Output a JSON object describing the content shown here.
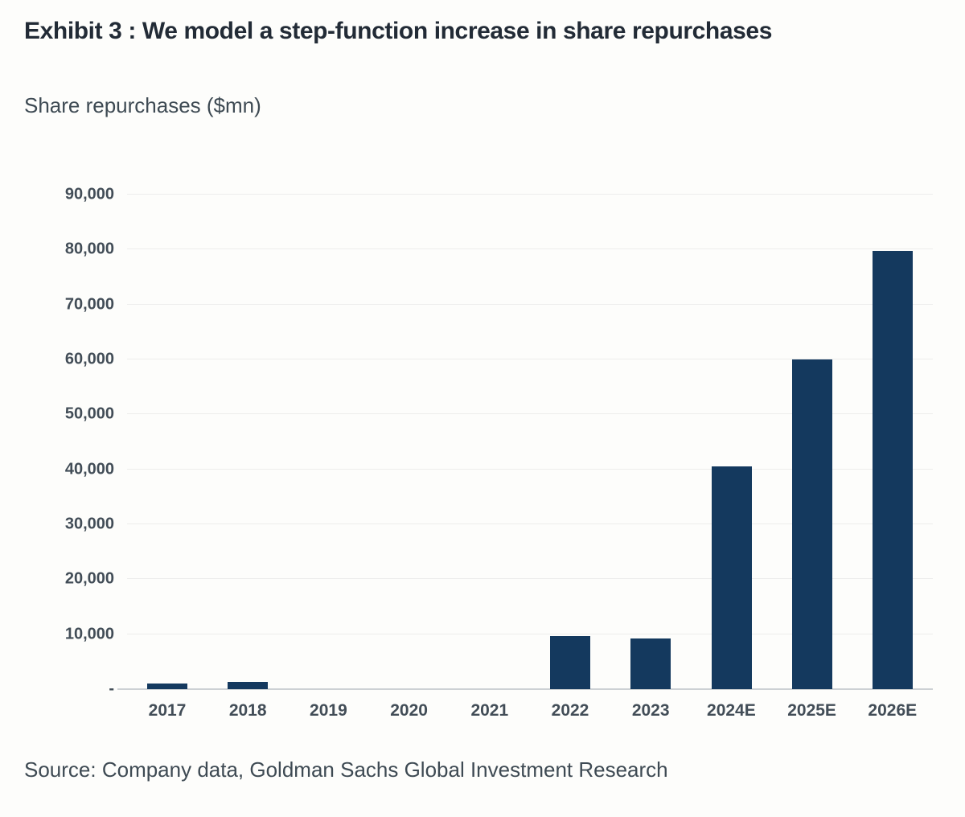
{
  "header": {
    "title": "Exhibit 3 : We model a step-function increase in share repurchases"
  },
  "subtitle": "Share repurchases ($mn)",
  "footer": {
    "source": "Source: Company data, Goldman Sachs Global Investment Research"
  },
  "colors": {
    "bar": "#14395e",
    "title_text": "#222b36",
    "body_text": "#3e4a53",
    "axis_label": "#424d57",
    "gridline": "#ededec",
    "axis_line": "#cdd1d4",
    "background": "#fdfdfb"
  },
  "chart_data": {
    "type": "bar",
    "title": "Exhibit 3 : We model a step-function increase in share repurchases",
    "subtitle": "Share repurchases ($mn)",
    "categories": [
      "2017",
      "2018",
      "2019",
      "2020",
      "2021",
      "2022",
      "2023",
      "2024E",
      "2025E",
      "2026E"
    ],
    "values": [
      1000,
      1300,
      0,
      0,
      0,
      9600,
      9200,
      40500,
      60000,
      79700
    ],
    "series_name": "Share repurchases ($mn)",
    "xlabel": "",
    "ylabel": "Share repurchases ($mn)",
    "ylim": [
      0,
      90000
    ],
    "ytick_interval": 10000,
    "ytick_labels_bottom_up": [
      "-",
      "10,000",
      "20,000",
      "30,000",
      "40,000",
      "50,000",
      "60,000",
      "70,000",
      "80,000",
      "90,000"
    ],
    "grid": true,
    "legend": false,
    "source": "Source: Company data, Goldman Sachs Global Investment Research"
  }
}
